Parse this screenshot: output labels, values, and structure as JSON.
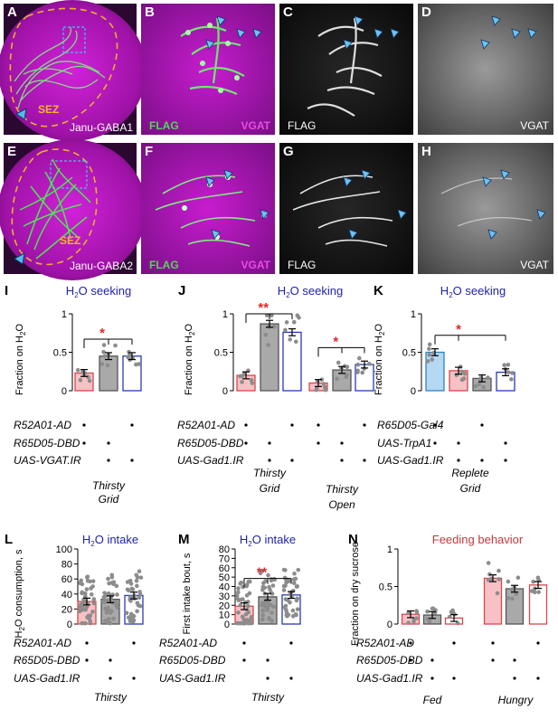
{
  "panel_letters": [
    "A",
    "B",
    "C",
    "D",
    "E",
    "F",
    "G",
    "H",
    "I",
    "J",
    "K",
    "L",
    "M",
    "N"
  ],
  "image_panels": {
    "A": {
      "left_label": "SEZ",
      "right_label": "Janu-GABA1"
    },
    "B": {
      "left_label": "FLAG",
      "right_label": "VGAT"
    },
    "C": {
      "left_label": "FLAG",
      "right_label": ""
    },
    "D": {
      "left_label": "",
      "right_label": "VGAT"
    },
    "E": {
      "left_label": "SEZ",
      "right_label": "Janu-GABA2"
    },
    "F": {
      "left_label": "FLAG",
      "right_label": "VGAT"
    },
    "G": {
      "left_label": "FLAG",
      "right_label": ""
    },
    "H": {
      "left_label": "",
      "right_label": "VGAT"
    }
  },
  "colors": {
    "title_blue": "#1f23a8",
    "title_red": "#c0393b",
    "bar_pink": "#f7c1c5",
    "bar_gray": "#a9a9a9",
    "bar_white": "#ffffff",
    "bar_lightblue": "#b5d8f3",
    "edge_red": "#d6494d",
    "edge_blue": "#2b39b8",
    "edge_gray": "#555555",
    "edge_lightblue": "#2a86c8",
    "sig_star": "#e0262c",
    "magenta": "#c015c8",
    "green": "#54d654"
  },
  "chart_data": [
    {
      "panel": "I",
      "type": "bar",
      "title": "H2O seeking",
      "ylabel": "Fraction on H2O",
      "ylim": [
        0,
        1
      ],
      "yticks": [
        "0",
        "0.5",
        "1"
      ],
      "genotype_rows": [
        "R52A01-AD",
        "R65D05-DBD",
        "UAS-VGAT.IR"
      ],
      "condition_labels": [
        "Thirsty",
        "Grid"
      ],
      "significance": [
        "*"
      ],
      "groups": [
        {
          "values": [
            0.23,
            0.45,
            0.45
          ]
        }
      ]
    },
    {
      "panel": "J",
      "type": "bar",
      "title": "H2O seeking",
      "ylabel": "Fraction on H2O",
      "ylim": [
        0,
        1
      ],
      "yticks": [
        "0",
        "0.5",
        "1"
      ],
      "genotype_rows": [
        "R52A01-AD",
        "R65D05-DBD",
        "UAS-Gad1.IR"
      ],
      "condition_labels": [
        "Thirsty\nGrid",
        "Thirsty\nOpen"
      ],
      "significance": [
        "**",
        "*"
      ],
      "groups": [
        {
          "values": [
            0.2,
            0.87,
            0.76
          ]
        },
        {
          "values": [
            0.1,
            0.27,
            0.34
          ]
        }
      ]
    },
    {
      "panel": "K",
      "type": "bar",
      "title": "H2O seeking",
      "ylabel": "Fraction on H2O",
      "ylim": [
        0,
        1
      ],
      "yticks": [
        "0",
        "0.5",
        "1"
      ],
      "genotype_rows": [
        "R65D05-Gal4",
        "UAS-TrpA1",
        "UAS-Gad1.IR"
      ],
      "condition_labels": [
        "Replete",
        "Grid"
      ],
      "significance": [
        "*"
      ],
      "groups": [
        {
          "values": [
            0.5,
            0.26,
            0.16,
            0.24
          ]
        }
      ]
    },
    {
      "panel": "L",
      "type": "bar",
      "title": "H2O intake",
      "ylabel": "H2O consumption, s",
      "ylim": [
        0,
        100
      ],
      "yticks": [
        "0",
        "20",
        "40",
        "60",
        "80",
        "100"
      ],
      "genotype_rows": [
        "R52A01-AD",
        "R65D05-DBD",
        "UAS-Gad1.IR"
      ],
      "condition_labels": [
        "Thirsty"
      ],
      "significance": [],
      "groups": [
        {
          "values": [
            30,
            33,
            38
          ]
        }
      ]
    },
    {
      "panel": "M",
      "type": "bar",
      "title": "H2O intake",
      "ylabel": "First intake bout, s",
      "ylim": [
        0,
        80
      ],
      "yticks": [
        "0",
        "10",
        "20",
        "30",
        "40",
        "50",
        "60",
        "70",
        "80"
      ],
      "genotype_rows": [
        "R52A01-AD",
        "R65D05-DBD",
        "UAS-Gad1.IR"
      ],
      "condition_labels": [
        "Thirsty"
      ],
      "significance": [
        "**"
      ],
      "groups": [
        {
          "values": [
            19,
            29,
            31
          ]
        }
      ]
    },
    {
      "panel": "N",
      "type": "bar",
      "title": "Feeding behavior",
      "ylabel": "Fraction on dry sucrose",
      "ylim": [
        0,
        1
      ],
      "yticks": [
        "0",
        "0.5",
        "1"
      ],
      "genotype_rows": [
        "R52A01-AD",
        "R65D05-DBD",
        "UAS-Gad1.IR"
      ],
      "condition_labels": [
        "Fed",
        "Hungry"
      ],
      "significance": [],
      "groups": [
        {
          "values": [
            0.13,
            0.12,
            0.08
          ]
        },
        {
          "values": [
            0.61,
            0.47,
            0.52
          ]
        }
      ]
    }
  ]
}
